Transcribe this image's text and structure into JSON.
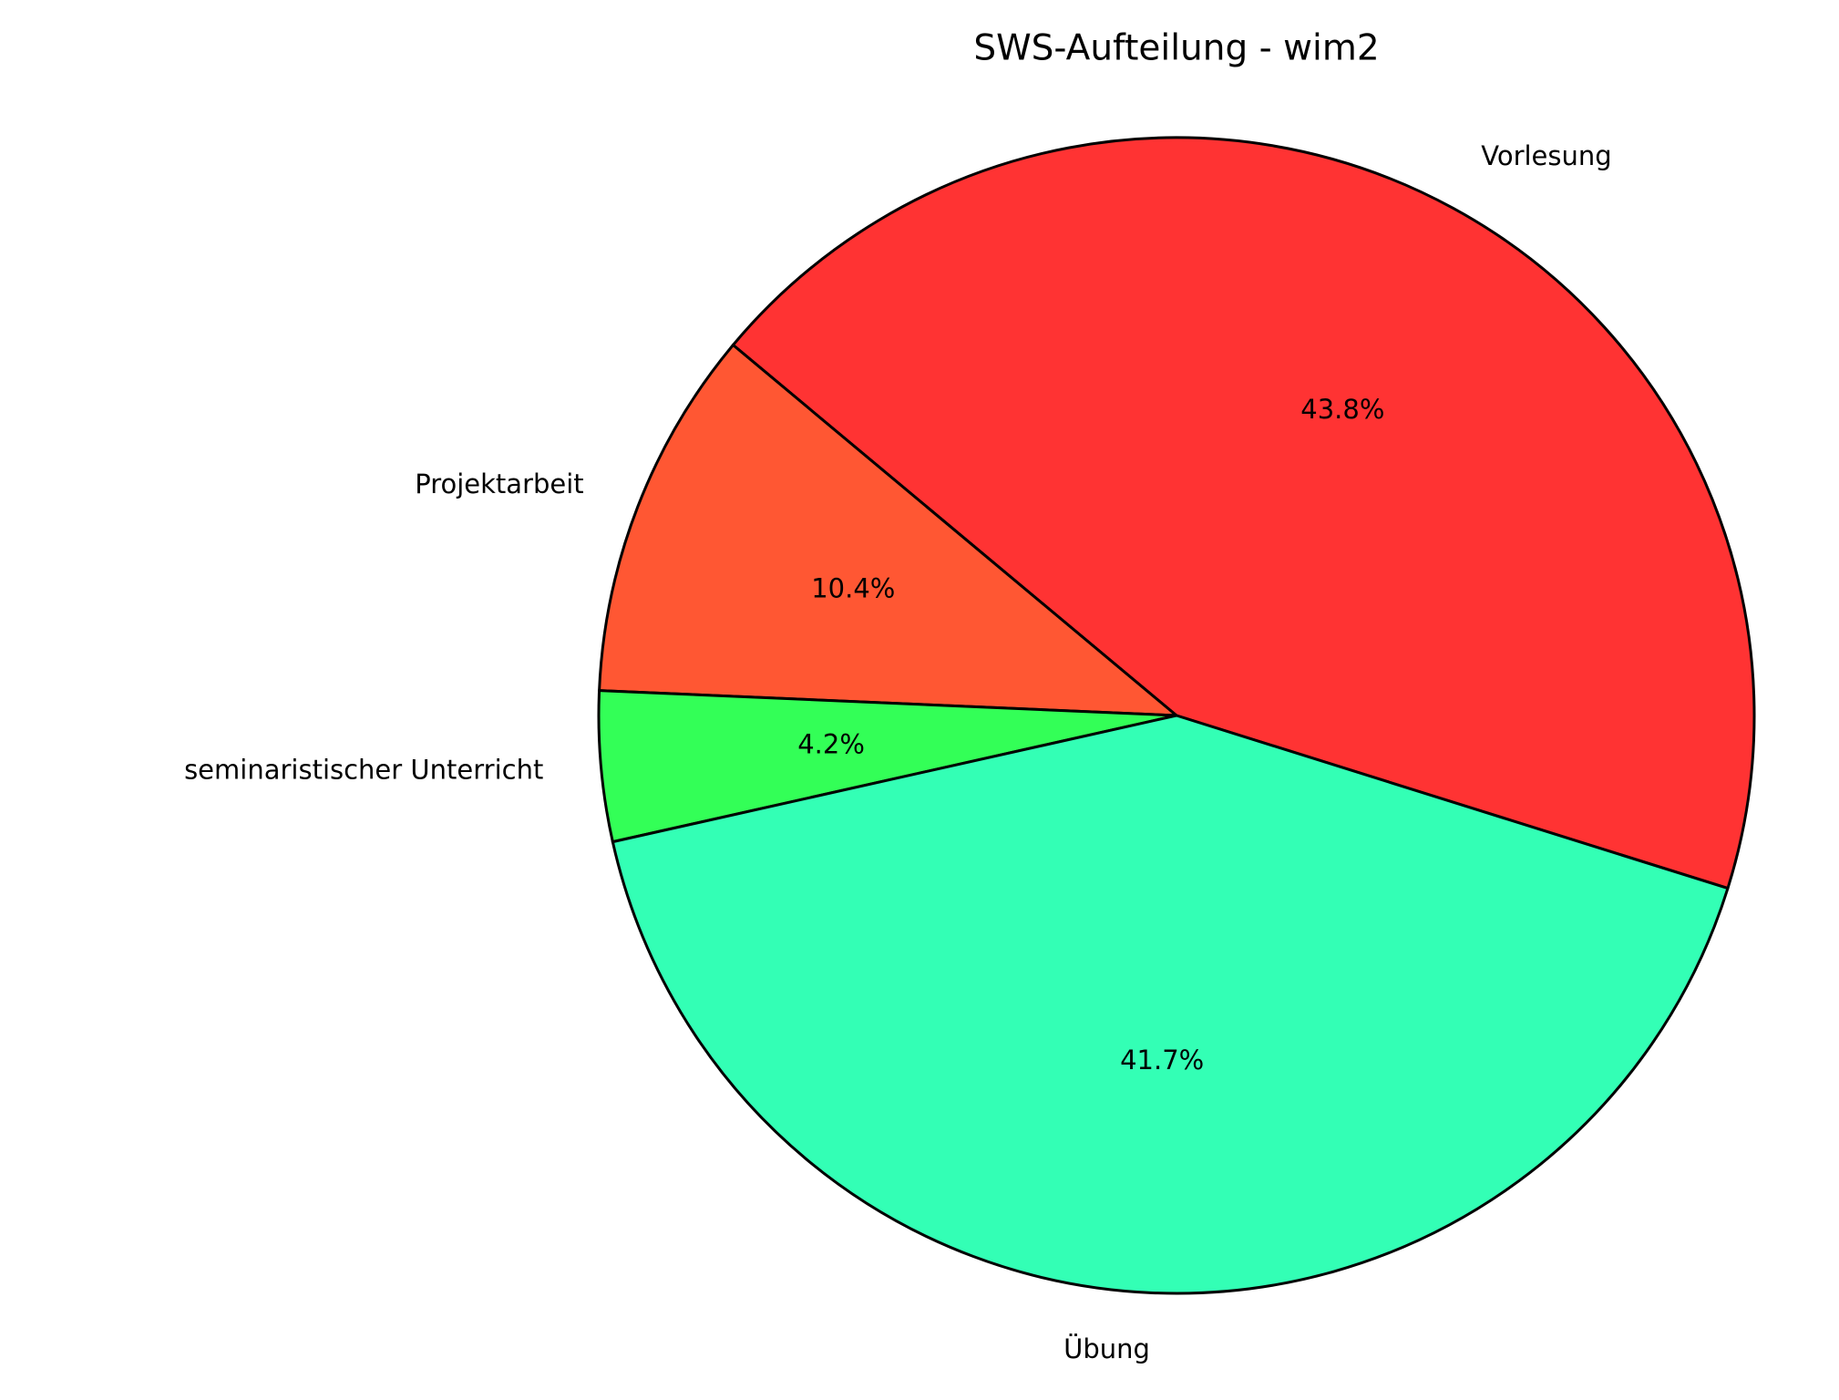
{
  "chart_data": {
    "type": "pie",
    "title": "SWS-Aufteilung - wim2",
    "categories": [
      "Vorlesung",
      "Projektarbeit",
      "seminaristischer Unterricht",
      "Übung"
    ],
    "values": [
      43.8,
      10.4,
      4.2,
      41.7
    ],
    "value_labels": [
      "43.8%",
      "10.4%",
      "4.2%",
      "41.7%"
    ],
    "colors": [
      "#ff3333",
      "#ff5733",
      "#33ff57",
      "#33ffb5"
    ]
  }
}
